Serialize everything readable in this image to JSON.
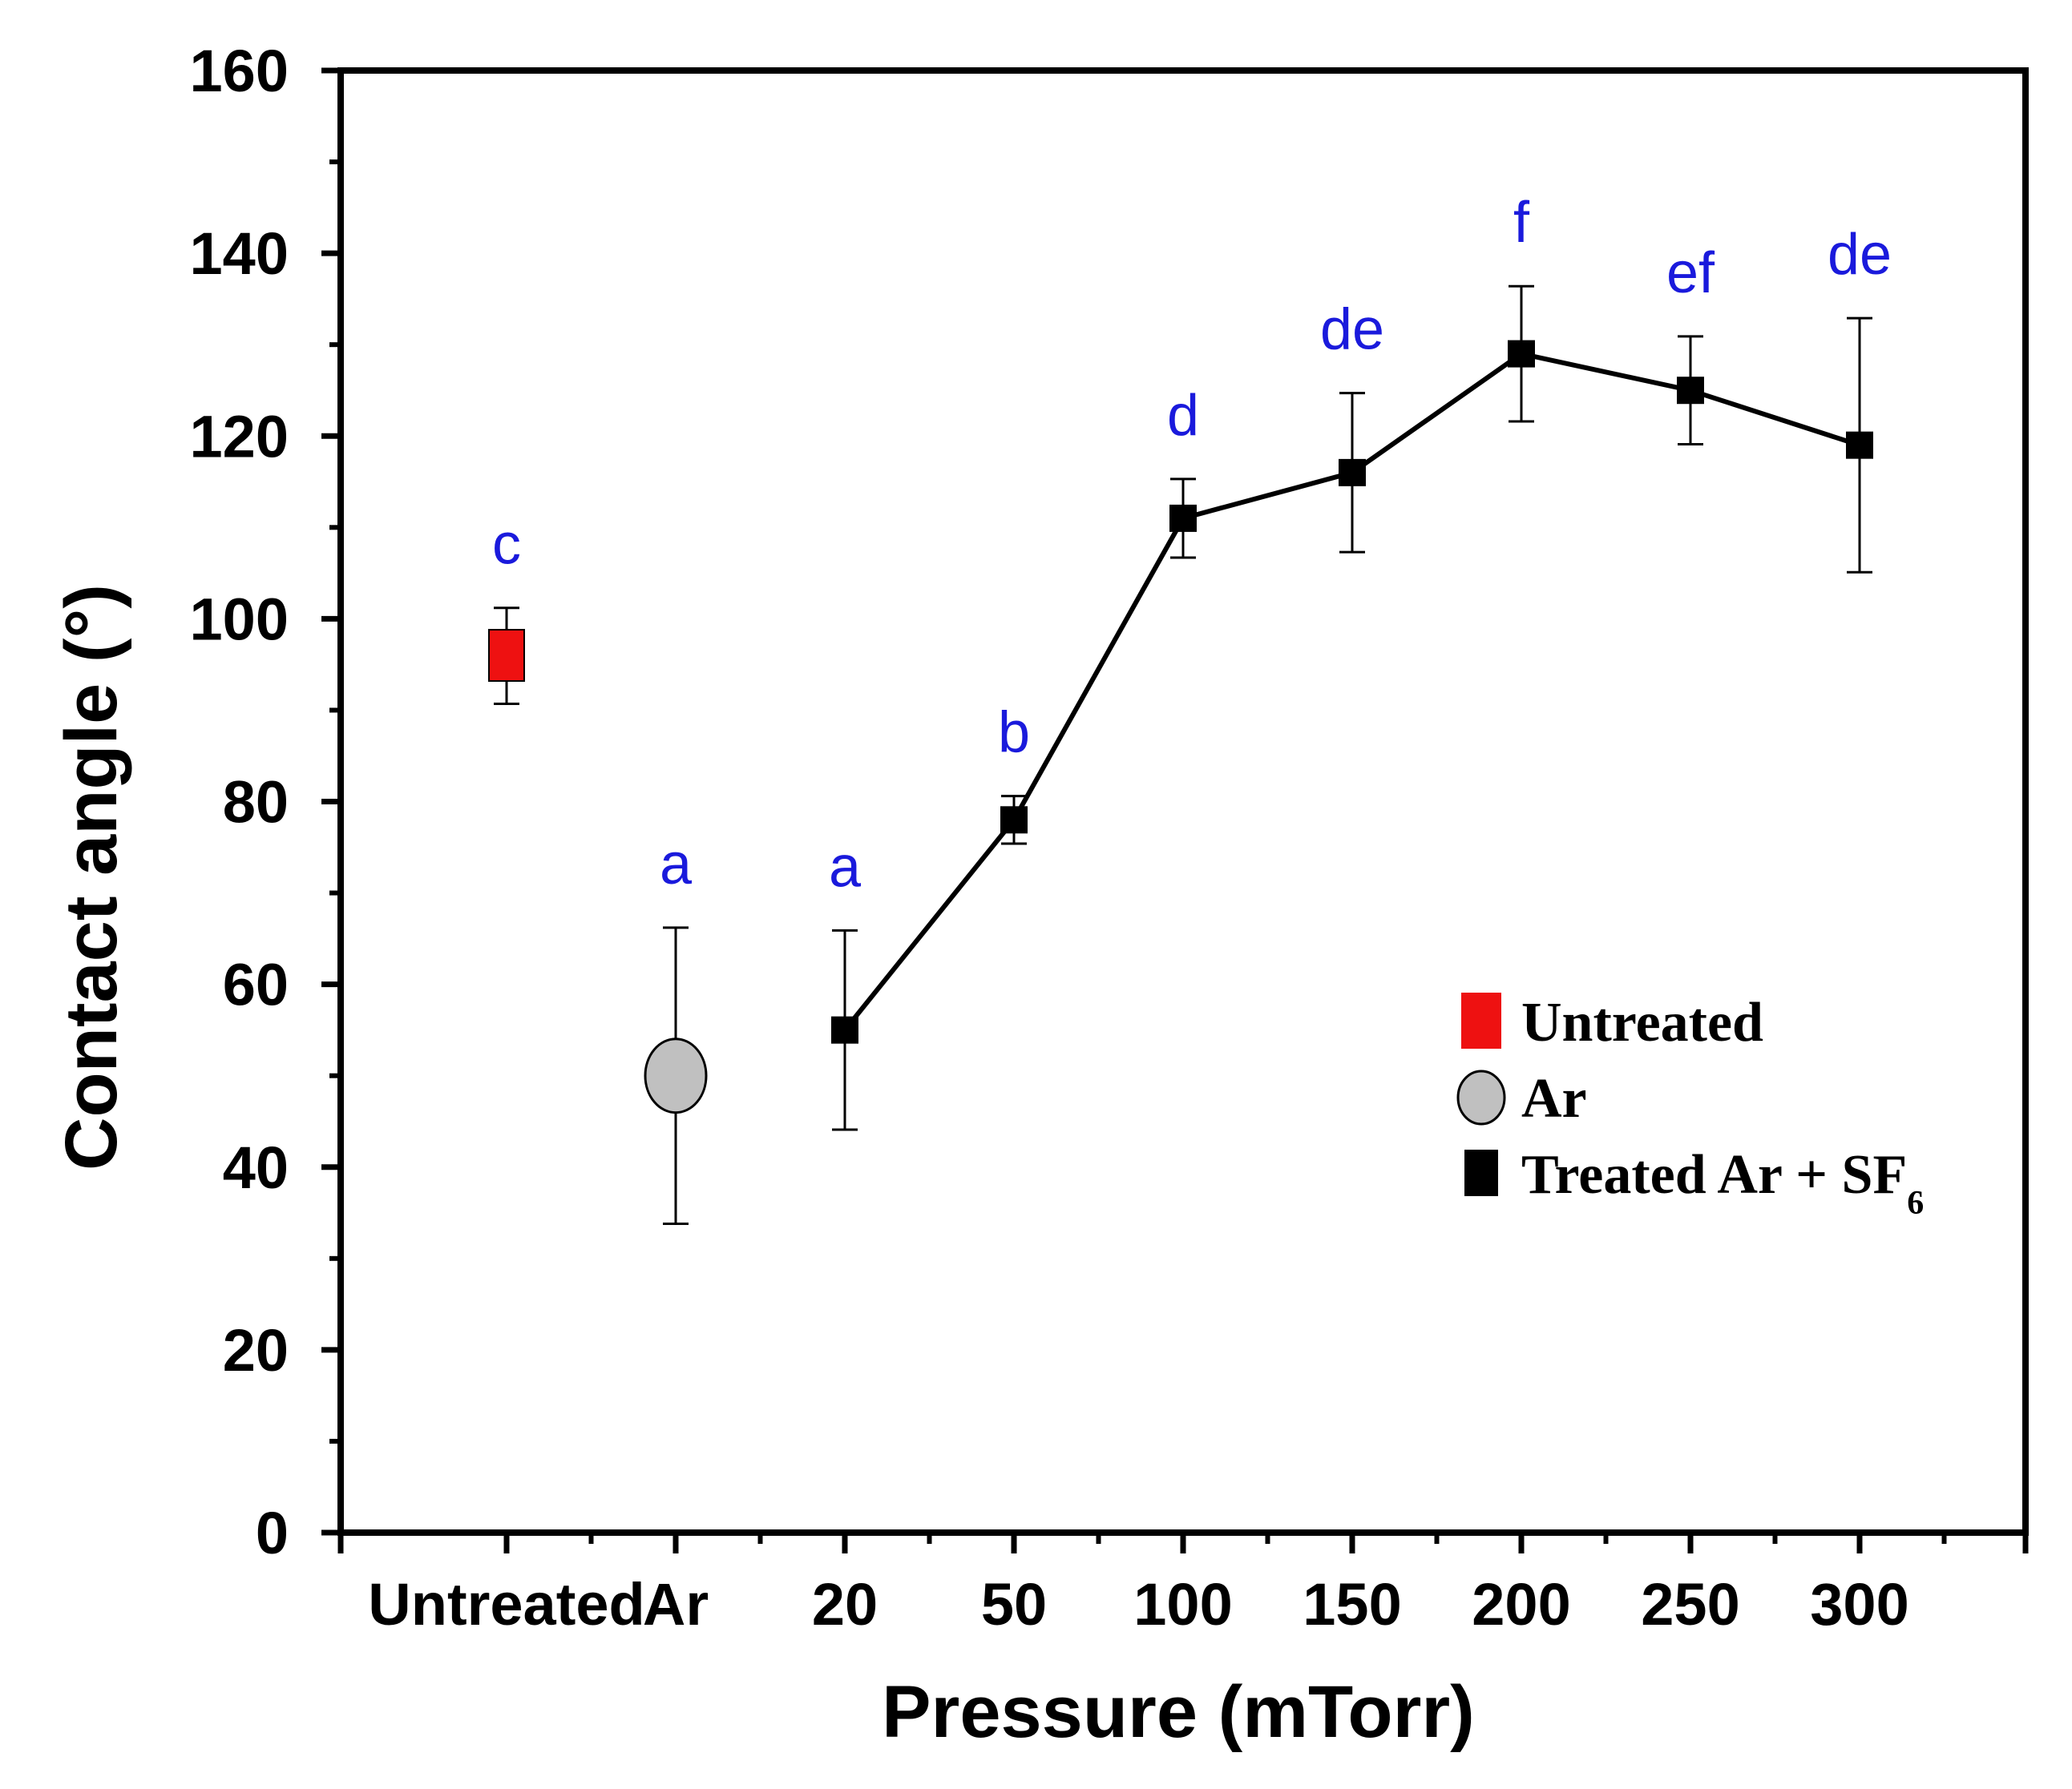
{
  "chart_data": {
    "type": "scatter",
    "xlabel": "Pressure (mTorr)",
    "ylabel": "Contact angle (°)",
    "ylim": [
      0,
      160
    ],
    "y_ticks": [
      0,
      20,
      40,
      60,
      80,
      100,
      120,
      140,
      160
    ],
    "categories": [
      "Untreated",
      "Ar",
      "20",
      "50",
      "100",
      "150",
      "200",
      "250",
      "300"
    ],
    "series": [
      {
        "name": "Untreated",
        "marker": "square",
        "color": "#ee1111",
        "connected": false,
        "points": [
          {
            "category": "Untreated",
            "value": 96,
            "err_low": 5.3,
            "err_high": 5.2,
            "letter": "c"
          }
        ]
      },
      {
        "name": "Ar",
        "marker": "circle",
        "color": "#c0c0c0",
        "connected": false,
        "points": [
          {
            "category": "Ar",
            "value": 50,
            "err_low": 16.2,
            "err_high": 16.2,
            "letter": "a"
          }
        ]
      },
      {
        "name": "Treated Ar + SF",
        "name_subscript": "6",
        "marker": "square",
        "color": "#000000",
        "connected": true,
        "points": [
          {
            "category": "20",
            "value": 55,
            "err_low": 10.9,
            "err_high": 10.9,
            "letter": "a"
          },
          {
            "category": "50",
            "value": 78,
            "err_low": 2.6,
            "err_high": 2.6,
            "letter": "b"
          },
          {
            "category": "100",
            "value": 111,
            "err_low": 4.3,
            "err_high": 4.3,
            "letter": "d"
          },
          {
            "category": "150",
            "value": 116,
            "err_low": 8.7,
            "err_high": 8.7,
            "letter": "de"
          },
          {
            "category": "200",
            "value": 129,
            "err_low": 7.4,
            "err_high": 7.4,
            "letter": "f"
          },
          {
            "category": "250",
            "value": 125,
            "err_low": 5.9,
            "err_high": 5.9,
            "letter": "ef"
          },
          {
            "category": "300",
            "value": 119,
            "err_low": 13.9,
            "err_high": 13.9,
            "letter": "de"
          }
        ]
      }
    ],
    "legend_position": "right-middle",
    "grid": false
  }
}
